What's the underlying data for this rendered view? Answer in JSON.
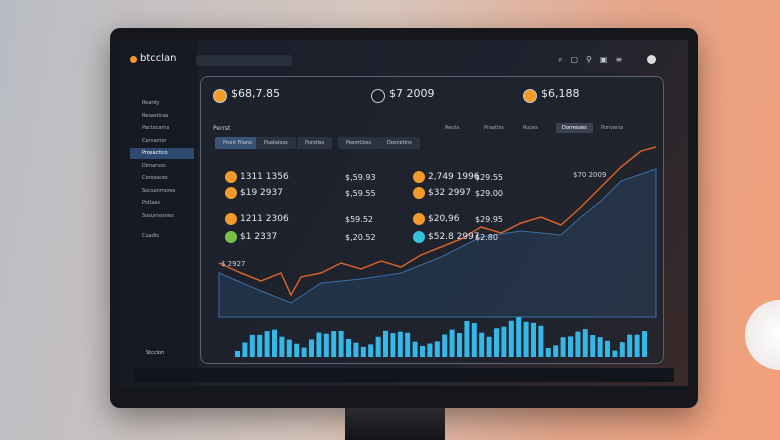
{
  "header": {
    "brand": "btcclan"
  },
  "sidebar": {
    "items": [
      "Reardy",
      "Resasticas",
      "Pactocarns",
      "Corvactor",
      "Prosactico",
      "Dimarvos",
      "Corosaces",
      "Socsanmores",
      "Potlaas",
      "Sosurnesnes",
      "Cuadis"
    ],
    "active": "Prosactico",
    "footer": "Stcclon"
  },
  "cards": [
    {
      "value": "$68,7.85"
    },
    {
      "value": "$7 2009"
    },
    {
      "value": "$6,188"
    }
  ],
  "section": {
    "label": "Perrst",
    "tabs": [
      "Reuts",
      "Praatiss",
      "Ruces",
      "Dorresses",
      "Ponverss"
    ],
    "active_tab": "Dorresses",
    "subtabs": [
      "Pront Fiiane",
      "Poataioss",
      "Porstiss",
      "Pesmtioss",
      "Dosnetins"
    ]
  },
  "coins": [
    {
      "name": "1311 1356",
      "change": "$,59.93"
    },
    {
      "name": "$19 2937",
      "change": "$,59.55"
    },
    {
      "name": "1211 2306",
      "change": "$59.52"
    },
    {
      "name": "$1 2337",
      "change": "$,20.52"
    },
    {
      "name": "2,749 1996",
      "change": "$29.55"
    },
    {
      "name": "$32 2997",
      "change": "$29.00"
    },
    {
      "name": "$20,96",
      "change": "$29.95"
    },
    {
      "name": "$52.8 2997",
      "change": "$2.80"
    }
  ],
  "chart": {
    "note": "$70 2009",
    "start_label": "$ 2927"
  }
}
